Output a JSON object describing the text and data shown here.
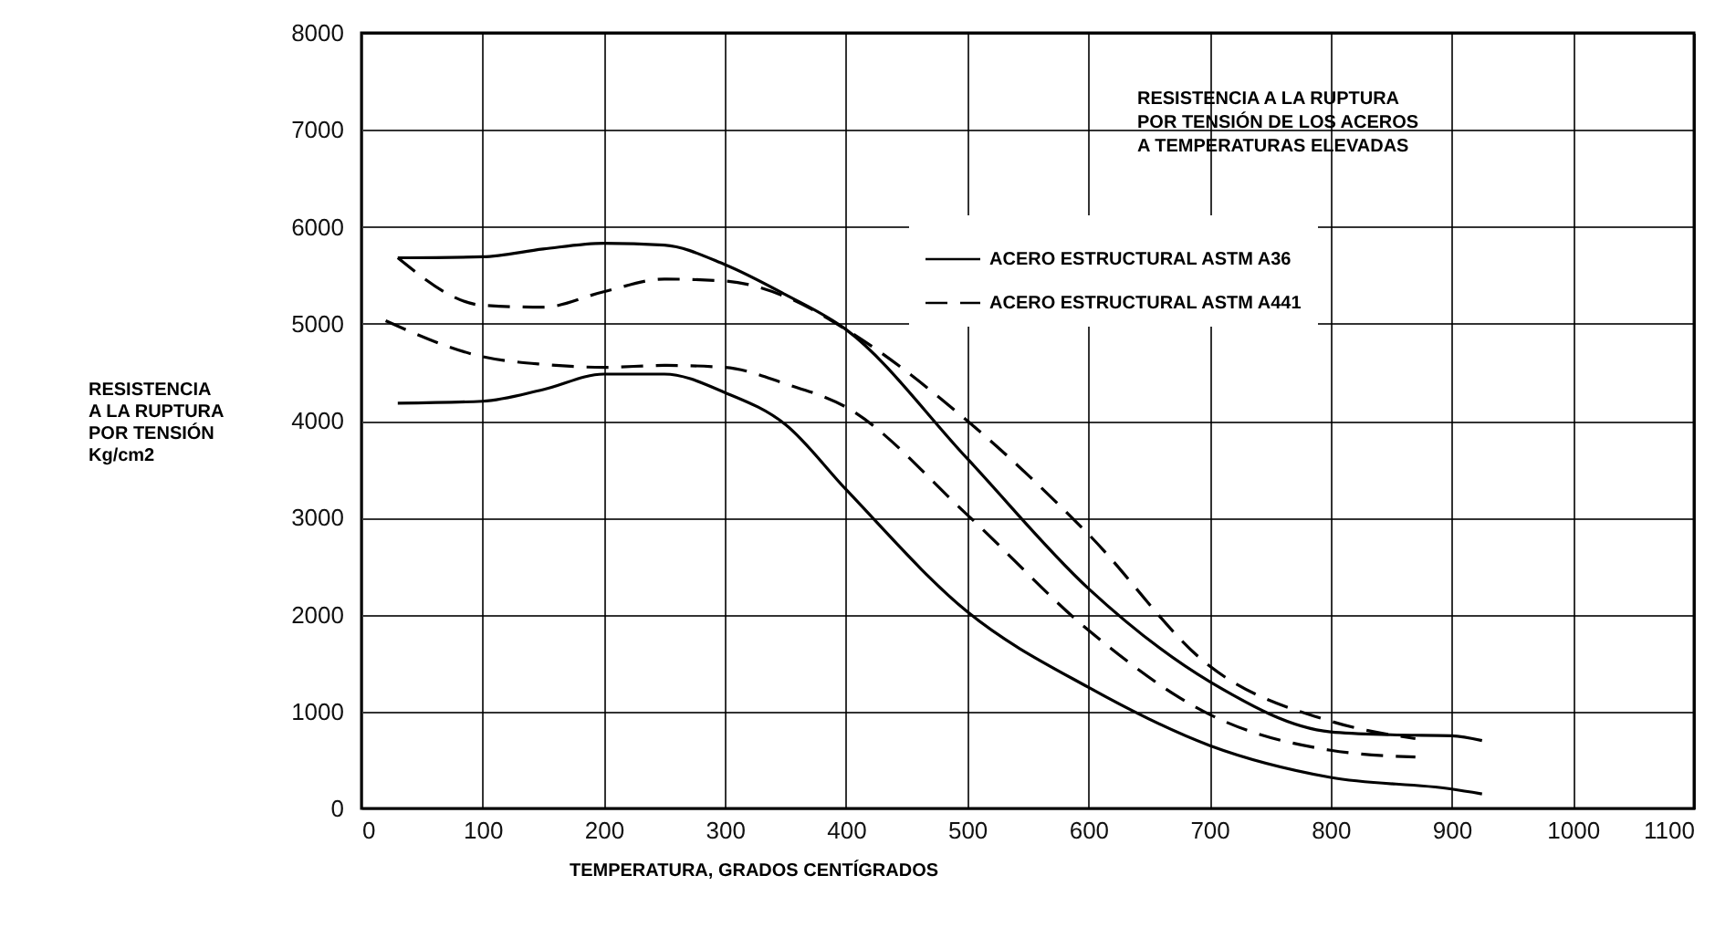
{
  "chart_data": {
    "type": "line",
    "title": "RESISTENCIA A LA RUPTURA\nPOR TENSIÓN DE LOS ACEROS\nA TEMPERATURAS ELEVADAS",
    "xlabel": "TEMPERATURA, GRADOS CENTÍGRADOS",
    "ylabel": "RESISTENCIA\nA LA RUPTURA\nPOR TENSIÓN\nKg/cm2",
    "xlim": [
      0,
      1100
    ],
    "xticks": [
      0,
      100,
      200,
      300,
      400,
      500,
      600,
      700,
      800,
      900,
      1000,
      1100
    ],
    "ylim": [
      0,
      8000
    ],
    "yticks": [
      0,
      1000,
      2000,
      3000,
      4000,
      5000,
      6000,
      7000,
      8000
    ],
    "grid": true,
    "legend": "top right",
    "marker": "none",
    "series": [
      {
        "name": "ACERO ESTRUCTURAL ASTM A36",
        "color": "#000000",
        "line_style": "solid",
        "x": [
          30,
          100,
          150,
          200,
          250,
          300,
          350,
          400,
          500,
          600,
          700,
          800,
          850,
          900,
          925
        ],
        "values": [
          5680,
          5690,
          5770,
          5830,
          5810,
          5610,
          5300,
          4940,
          3610,
          2270,
          1310,
          790,
          760,
          750,
          700
        ]
      },
      {
        "color": "#000000",
        "line_style": "solid",
        "x": [
          30,
          100,
          150,
          200,
          250,
          300,
          350,
          400,
          500,
          600,
          700,
          800,
          900,
          925
        ],
        "values": [
          4180,
          4200,
          4320,
          4480,
          4480,
          4290,
          3960,
          3290,
          2030,
          1250,
          650,
          320,
          200,
          150
        ]
      },
      {
        "name": "ACERO ESTRUCTURAL ASTM A441",
        "color": "#000000",
        "line_style": "dashed",
        "x": [
          30,
          100,
          150,
          200,
          250,
          300,
          350,
          400,
          500,
          600,
          700,
          800,
          870
        ],
        "values": [
          5680,
          5190,
          5170,
          5330,
          5460,
          5440,
          5280,
          4940,
          4000,
          2830,
          1470,
          900,
          720
        ]
      },
      {
        "color": "#000000",
        "line_style": "dashed",
        "x": [
          20,
          100,
          150,
          200,
          250,
          300,
          350,
          400,
          500,
          600,
          700,
          800,
          870
        ],
        "values": [
          5030,
          4660,
          4580,
          4550,
          4570,
          4550,
          4380,
          4140,
          3030,
          1840,
          970,
          600,
          530
        ]
      }
    ]
  }
}
